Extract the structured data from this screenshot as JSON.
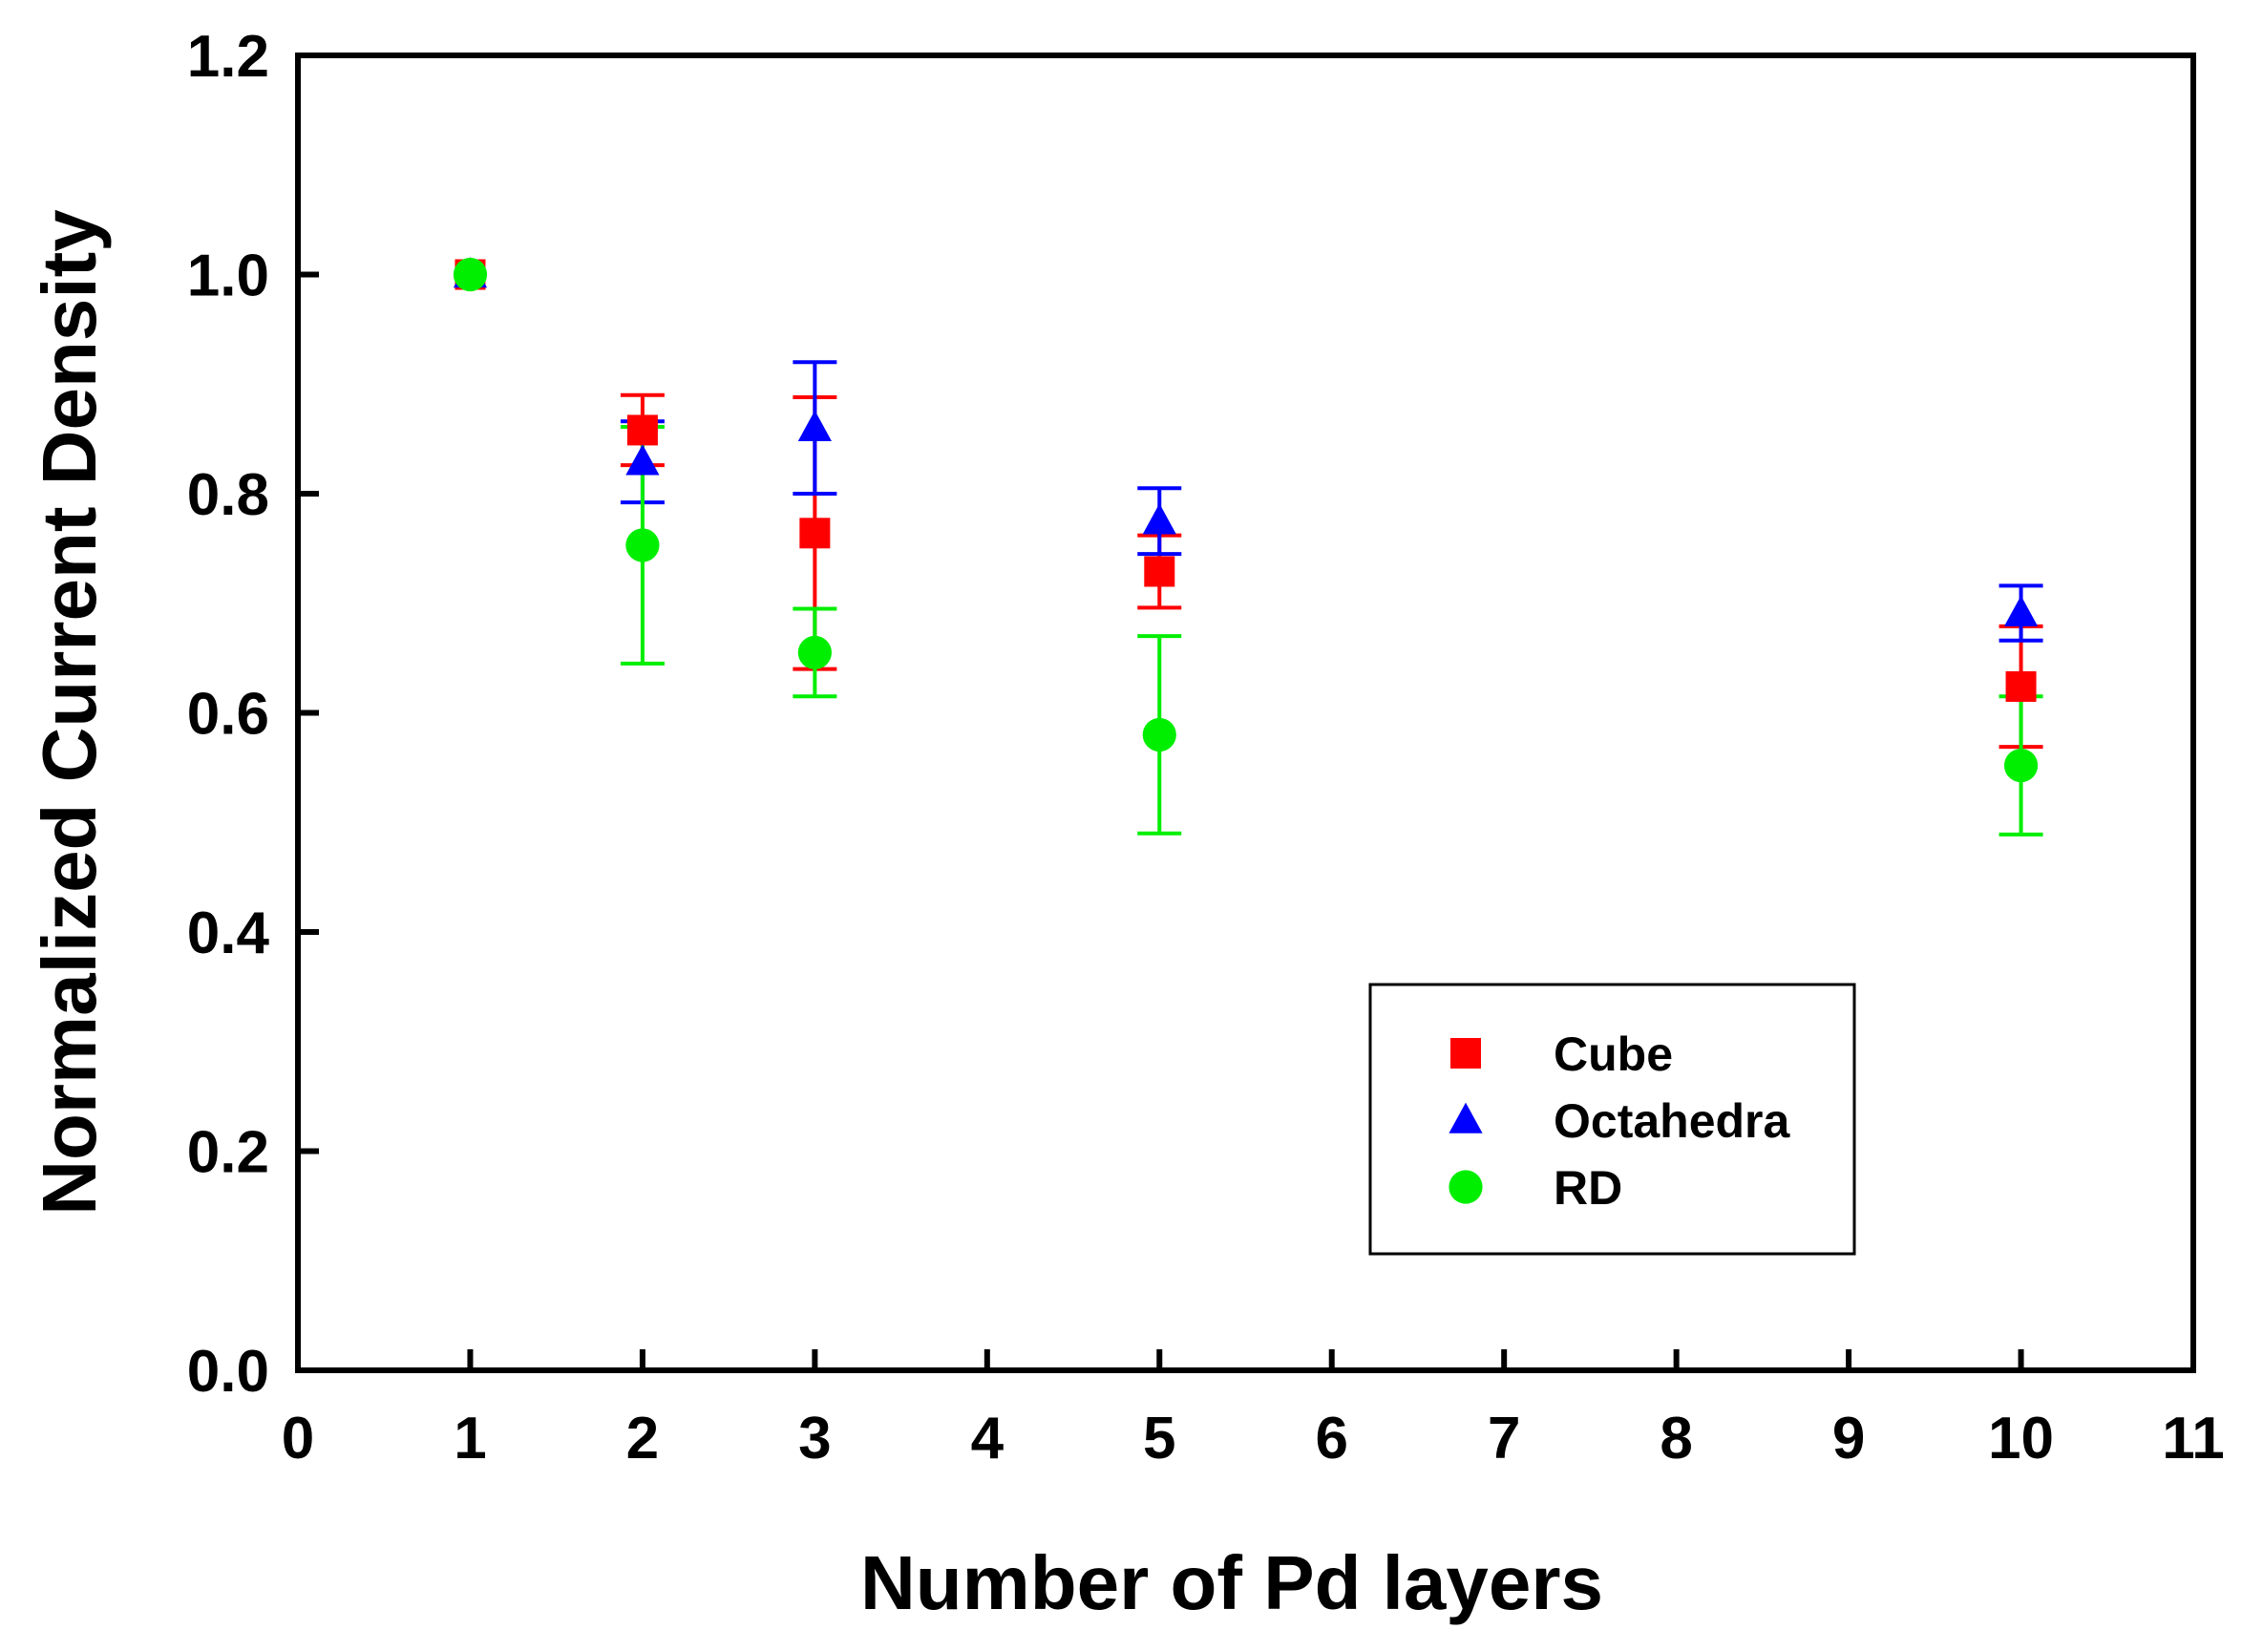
{
  "chart_data": {
    "type": "scatter",
    "title": "",
    "xlabel": "Number of Pd layers",
    "ylabel": "Normalized Current Density",
    "xlim": [
      0,
      11
    ],
    "ylim": [
      0.0,
      1.2
    ],
    "xticks": [
      "0",
      "1",
      "2",
      "3",
      "4",
      "5",
      "6",
      "7",
      "8",
      "9",
      "10",
      "11"
    ],
    "yticks": [
      "0.0",
      "0.2",
      "0.4",
      "0.6",
      "0.8",
      "1.0",
      "1.2"
    ],
    "grid": false,
    "legend_position": "lower-right",
    "series": [
      {
        "name": "Cube",
        "marker": "square",
        "color": "#ff0000",
        "x": [
          1,
          2,
          3,
          5,
          10
        ],
        "y": [
          1.0,
          0.858,
          0.764,
          0.729,
          0.624
        ],
        "err": [
          0.0,
          0.032,
          0.124,
          0.033,
          0.055
        ]
      },
      {
        "name": "Octahedra",
        "marker": "triangle",
        "color": "#0000ff",
        "x": [
          1,
          2,
          3,
          5,
          10
        ],
        "y": [
          1.0,
          0.829,
          0.86,
          0.775,
          0.691
        ],
        "err": [
          0.0,
          0.037,
          0.06,
          0.03,
          0.025
        ]
      },
      {
        "name": "RD",
        "marker": "circle",
        "color": "#00ee00",
        "x": [
          1,
          2,
          3,
          5,
          10
        ],
        "y": [
          1.0,
          0.753,
          0.655,
          0.58,
          0.552
        ],
        "err": [
          0.0,
          0.108,
          0.04,
          0.09,
          0.063
        ]
      }
    ]
  }
}
